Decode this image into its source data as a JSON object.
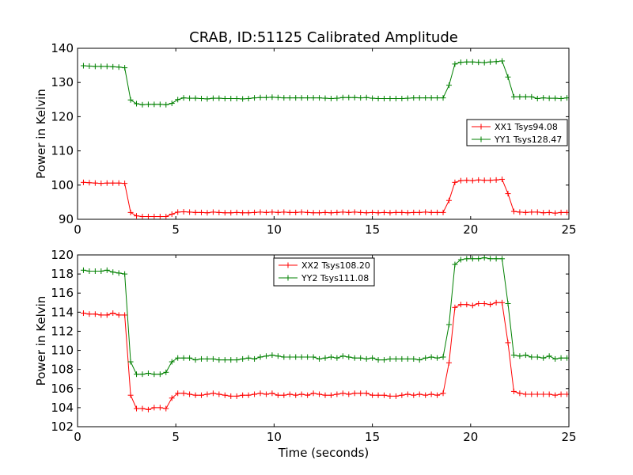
{
  "chart_data": [
    {
      "type": "line",
      "title": "CRAB, ID:51125 Calibrated Amplitude",
      "xlabel": "",
      "ylabel": "Power in Kelvin",
      "xlim": [
        0,
        25
      ],
      "ylim": [
        90,
        140
      ],
      "xticks": [
        0,
        5,
        10,
        15,
        20,
        25
      ],
      "xtick_labels": [
        "0",
        "5",
        "10",
        "15",
        "20",
        "25"
      ],
      "yticks": [
        90,
        100,
        110,
        120,
        130,
        140
      ],
      "ytick_labels": [
        "90",
        "100",
        "110",
        "120",
        "130",
        "140"
      ],
      "grid": false,
      "legend_position": "right",
      "x": [
        0.3,
        0.6,
        0.9,
        1.2,
        1.5,
        1.8,
        2.1,
        2.4,
        2.7,
        3.0,
        3.3,
        3.6,
        3.9,
        4.2,
        4.5,
        4.8,
        5.1,
        5.4,
        5.7,
        6.0,
        6.3,
        6.6,
        6.9,
        7.2,
        7.5,
        7.8,
        8.1,
        8.4,
        8.7,
        9.0,
        9.3,
        9.6,
        9.9,
        10.2,
        10.5,
        10.8,
        11.1,
        11.4,
        11.7,
        12.0,
        12.3,
        12.6,
        12.9,
        13.2,
        13.5,
        13.8,
        14.1,
        14.4,
        14.7,
        15.0,
        15.3,
        15.6,
        15.9,
        16.2,
        16.5,
        16.8,
        17.1,
        17.4,
        17.7,
        18.0,
        18.3,
        18.6,
        18.9,
        19.2,
        19.5,
        19.8,
        20.1,
        20.4,
        20.7,
        21.0,
        21.3,
        21.6,
        21.9,
        22.2,
        22.5,
        22.8,
        23.1,
        23.4,
        23.7,
        24.0,
        24.3,
        24.6,
        24.9
      ],
      "series": [
        {
          "name": "XX1 Tsys94.08",
          "color": "#ff0000",
          "values": [
            100.8,
            100.7,
            100.6,
            100.5,
            100.6,
            100.6,
            100.6,
            100.5,
            92.0,
            91.0,
            90.8,
            90.8,
            90.8,
            90.8,
            90.8,
            91.5,
            92.1,
            92.2,
            92.1,
            92.0,
            92.0,
            91.9,
            92.1,
            92.0,
            91.9,
            91.9,
            92.0,
            91.9,
            91.9,
            92.0,
            92.1,
            92.0,
            92.1,
            92.0,
            92.1,
            92.0,
            92.0,
            92.1,
            92.0,
            91.9,
            91.9,
            92.0,
            91.9,
            92.0,
            92.1,
            92.0,
            92.1,
            92.0,
            91.9,
            92.0,
            91.9,
            92.0,
            91.9,
            92.0,
            92.0,
            91.9,
            92.0,
            92.0,
            92.1,
            92.0,
            92.0,
            92.0,
            95.5,
            100.8,
            101.3,
            101.4,
            101.3,
            101.5,
            101.4,
            101.4,
            101.5,
            101.7,
            97.5,
            92.3,
            92.1,
            92.0,
            92.1,
            92.1,
            91.9,
            92.0,
            91.8,
            92.0,
            92.0
          ]
        },
        {
          "name": "YY1 Tsys128.47",
          "color": "#008000",
          "values": [
            134.9,
            134.8,
            134.7,
            134.7,
            134.7,
            134.6,
            134.5,
            134.3,
            124.9,
            123.8,
            123.5,
            123.6,
            123.6,
            123.6,
            123.5,
            123.9,
            125.0,
            125.5,
            125.4,
            125.4,
            125.3,
            125.2,
            125.4,
            125.4,
            125.3,
            125.3,
            125.3,
            125.2,
            125.3,
            125.5,
            125.6,
            125.6,
            125.7,
            125.6,
            125.5,
            125.5,
            125.5,
            125.5,
            125.5,
            125.5,
            125.5,
            125.4,
            125.3,
            125.4,
            125.6,
            125.6,
            125.6,
            125.5,
            125.6,
            125.4,
            125.3,
            125.3,
            125.3,
            125.3,
            125.3,
            125.4,
            125.5,
            125.5,
            125.5,
            125.5,
            125.5,
            125.5,
            129.2,
            135.4,
            135.9,
            136.0,
            136.0,
            135.9,
            135.8,
            136.0,
            136.1,
            136.3,
            131.6,
            125.8,
            125.8,
            125.8,
            125.8,
            125.3,
            125.5,
            125.4,
            125.4,
            125.3,
            125.5
          ]
        }
      ]
    },
    {
      "type": "line",
      "title": "",
      "xlabel": "Time (seconds)",
      "ylabel": "Power in Kelvin",
      "xlim": [
        0,
        25
      ],
      "ylim": [
        102,
        120
      ],
      "xticks": [
        0,
        5,
        10,
        15,
        20,
        25
      ],
      "xtick_labels": [
        "0",
        "5",
        "10",
        "15",
        "20",
        "25"
      ],
      "yticks": [
        102,
        104,
        106,
        108,
        110,
        112,
        114,
        116,
        118,
        120
      ],
      "ytick_labels": [
        "102",
        "104",
        "106",
        "108",
        "110",
        "112",
        "114",
        "116",
        "118",
        "120"
      ],
      "grid": false,
      "legend_position": "top-center",
      "x": [
        0.3,
        0.6,
        0.9,
        1.2,
        1.5,
        1.8,
        2.1,
        2.4,
        2.7,
        3.0,
        3.3,
        3.6,
        3.9,
        4.2,
        4.5,
        4.8,
        5.1,
        5.4,
        5.7,
        6.0,
        6.3,
        6.6,
        6.9,
        7.2,
        7.5,
        7.8,
        8.1,
        8.4,
        8.7,
        9.0,
        9.3,
        9.6,
        9.9,
        10.2,
        10.5,
        10.8,
        11.1,
        11.4,
        11.7,
        12.0,
        12.3,
        12.6,
        12.9,
        13.2,
        13.5,
        13.8,
        14.1,
        14.4,
        14.7,
        15.0,
        15.3,
        15.6,
        15.9,
        16.2,
        16.5,
        16.8,
        17.1,
        17.4,
        17.7,
        18.0,
        18.3,
        18.6,
        18.9,
        19.2,
        19.5,
        19.8,
        20.1,
        20.4,
        20.7,
        21.0,
        21.3,
        21.6,
        21.9,
        22.2,
        22.5,
        22.8,
        23.1,
        23.4,
        23.7,
        24.0,
        24.3,
        24.6,
        24.9
      ],
      "series": [
        {
          "name": "XX2 Tsys108.20",
          "color": "#ff0000",
          "values": [
            113.9,
            113.8,
            113.8,
            113.7,
            113.7,
            113.9,
            113.7,
            113.7,
            105.3,
            103.9,
            103.9,
            103.8,
            104.0,
            104.0,
            103.9,
            105.0,
            105.5,
            105.5,
            105.4,
            105.3,
            105.3,
            105.4,
            105.5,
            105.4,
            105.3,
            105.2,
            105.2,
            105.3,
            105.3,
            105.4,
            105.5,
            105.4,
            105.5,
            105.3,
            105.3,
            105.4,
            105.3,
            105.4,
            105.3,
            105.5,
            105.4,
            105.3,
            105.3,
            105.4,
            105.5,
            105.4,
            105.5,
            105.5,
            105.5,
            105.3,
            105.3,
            105.3,
            105.2,
            105.2,
            105.3,
            105.4,
            105.3,
            105.4,
            105.3,
            105.4,
            105.3,
            105.5,
            108.7,
            114.5,
            114.8,
            114.8,
            114.7,
            114.9,
            114.9,
            114.8,
            115.0,
            115.0,
            110.8,
            105.7,
            105.5,
            105.4,
            105.4,
            105.4,
            105.4,
            105.4,
            105.3,
            105.4,
            105.4
          ]
        },
        {
          "name": "YY2 Tsys111.08",
          "color": "#008000",
          "values": [
            118.4,
            118.3,
            118.3,
            118.3,
            118.4,
            118.2,
            118.1,
            118.0,
            108.8,
            107.5,
            107.5,
            107.6,
            107.5,
            107.5,
            107.7,
            108.8,
            109.2,
            109.2,
            109.2,
            109.0,
            109.1,
            109.1,
            109.1,
            109.0,
            109.0,
            109.0,
            109.0,
            109.1,
            109.2,
            109.1,
            109.3,
            109.4,
            109.5,
            109.4,
            109.3,
            109.3,
            109.3,
            109.3,
            109.3,
            109.3,
            109.1,
            109.2,
            109.3,
            109.2,
            109.4,
            109.3,
            109.2,
            109.2,
            109.1,
            109.2,
            109.0,
            109.0,
            109.1,
            109.1,
            109.1,
            109.1,
            109.1,
            109.0,
            109.2,
            109.3,
            109.2,
            109.3,
            112.7,
            119.0,
            119.5,
            119.6,
            119.6,
            119.6,
            119.7,
            119.6,
            119.6,
            119.6,
            114.9,
            109.5,
            109.4,
            109.5,
            109.3,
            109.3,
            109.2,
            109.4,
            109.1,
            109.2,
            109.2
          ]
        }
      ]
    }
  ]
}
